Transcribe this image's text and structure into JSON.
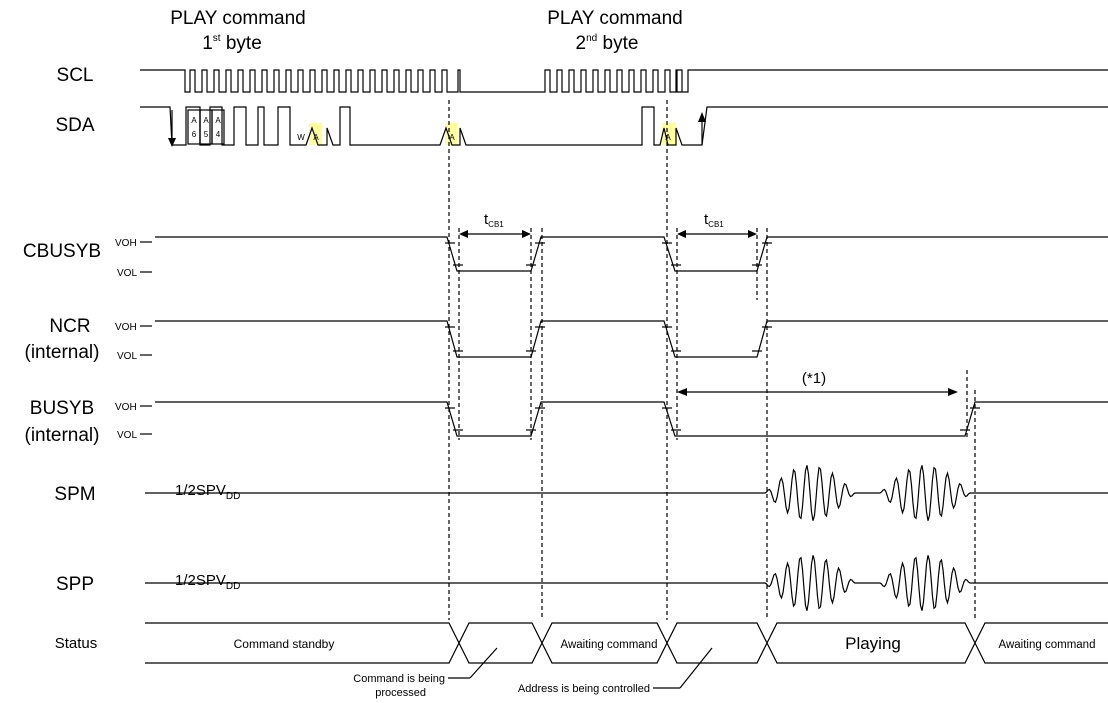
{
  "headers": {
    "play1": {
      "line1": "PLAY command",
      "ord": "1",
      "sup": "st",
      "rest": " byte"
    },
    "play2": {
      "line1": "PLAY command",
      "ord": "2",
      "sup": "nd",
      "rest": " byte"
    }
  },
  "signals": {
    "scl": "SCL",
    "sda": "SDA",
    "cbusyb": "CBUSYB",
    "ncr": {
      "line1": "NCR",
      "line2": "(internal)"
    },
    "busyb": {
      "line1": "BUSYB",
      "line2": "(internal)"
    },
    "spm": "SPM",
    "spp": "SPP",
    "status": "Status"
  },
  "levels": {
    "voh": "VOH",
    "vol": "VOL",
    "bias_prefix": "1/2SPV",
    "bias_sub": "DD"
  },
  "sda_bits": {
    "a6": {
      "top": "A",
      "bottom": "6"
    },
    "a5": {
      "top": "A",
      "bottom": "5"
    },
    "a4": {
      "top": "A",
      "bottom": "4"
    },
    "w": "W",
    "ack": "A"
  },
  "timing": {
    "tcb1": {
      "main": "t",
      "sub": "CB1"
    },
    "note1": "(*1)"
  },
  "status_states": {
    "s1": "Command standby",
    "s3": "Awaiting command",
    "s5": "Playing",
    "s6": "Awaiting command"
  },
  "annotations": {
    "cmd_processed_line1": "Command is being",
    "cmd_processed_line2": "processed",
    "addr_controlled": "Address is being controlled"
  }
}
